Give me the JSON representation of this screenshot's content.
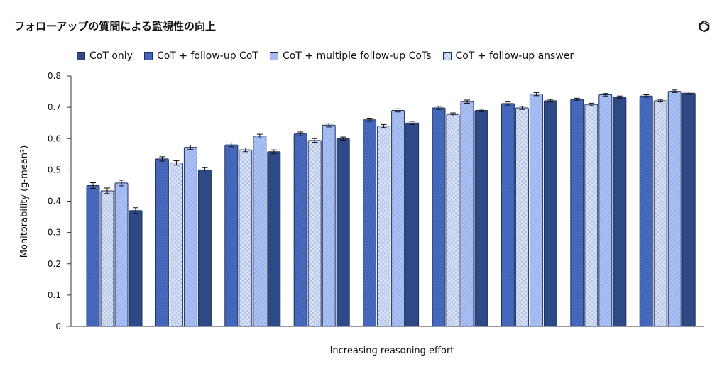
{
  "title": "フォローアップの質問による監視性の向上",
  "colors": {
    "cot_only": "#2d4a87",
    "cot_followup": "#4a6ec4",
    "cot_multiple": "#a9c0f5",
    "cot_answer": "#d8e3f8",
    "border": "#1e2f5c"
  },
  "chart_data": {
    "type": "bar",
    "xlabel": "Increasing reasoning effort",
    "ylabel": "Monitorability (g-mean²)",
    "ylim": [
      0,
      0.8
    ],
    "yticks": [
      "0",
      "0.1",
      "0.2",
      "0.3",
      "0.4",
      "0.5",
      "0.6",
      "0.7",
      "0.8"
    ],
    "legend_position": "top-left",
    "groups": 9,
    "series": [
      {
        "key": "cot_followup",
        "name": "CoT + follow-up CoT",
        "values": [
          0.45,
          0.535,
          0.58,
          0.615,
          0.66,
          0.698,
          0.712,
          0.725,
          0.736
        ],
        "errors": [
          0.009,
          0.007,
          0.006,
          0.006,
          0.005,
          0.005,
          0.005,
          0.004,
          0.004
        ]
      },
      {
        "key": "cot_answer",
        "name": "CoT + follow-up answer",
        "values": [
          0.433,
          0.522,
          0.564,
          0.594,
          0.64,
          0.677,
          0.698,
          0.709,
          0.721
        ],
        "errors": [
          0.009,
          0.007,
          0.006,
          0.006,
          0.005,
          0.005,
          0.005,
          0.004,
          0.004
        ]
      },
      {
        "key": "cot_multiple",
        "name": "CoT + multiple follow-up CoTs",
        "values": [
          0.458,
          0.572,
          0.608,
          0.643,
          0.69,
          0.718,
          0.742,
          0.74,
          0.751
        ],
        "errors": [
          0.009,
          0.007,
          0.006,
          0.006,
          0.005,
          0.005,
          0.005,
          0.004,
          0.004
        ]
      },
      {
        "key": "cot_only",
        "name": "CoT only",
        "values": [
          0.37,
          0.5,
          0.558,
          0.6,
          0.65,
          0.69,
          0.721,
          0.732,
          0.745
        ],
        "errors": [
          0.009,
          0.007,
          0.006,
          0.005,
          0.005,
          0.004,
          0.004,
          0.004,
          0.004
        ]
      }
    ]
  },
  "legend": [
    {
      "key": "cot_only",
      "label": "CoT only"
    },
    {
      "key": "cot_followup",
      "label": "CoT + follow-up CoT"
    },
    {
      "key": "cot_multiple",
      "label": "CoT + multiple follow-up CoTs"
    },
    {
      "key": "cot_answer",
      "label": "CoT + follow-up answer"
    }
  ]
}
